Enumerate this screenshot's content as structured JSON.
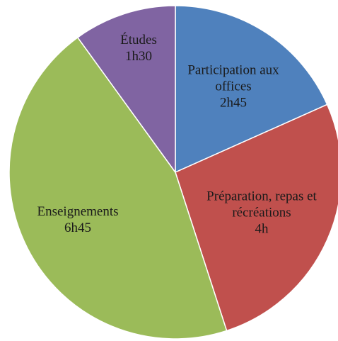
{
  "chart_data": {
    "type": "pie",
    "categories": [
      "Participation aux offices",
      "Préparation, repas et récréations",
      "Enseignements",
      "Études"
    ],
    "values": [
      2.75,
      4,
      6.75,
      1.5
    ],
    "value_labels": [
      "2h45",
      "4h",
      "6h45",
      "1h30"
    ],
    "colors": [
      "#4f81bd",
      "#c0504d",
      "#9bbb59",
      "#8064a2"
    ]
  }
}
